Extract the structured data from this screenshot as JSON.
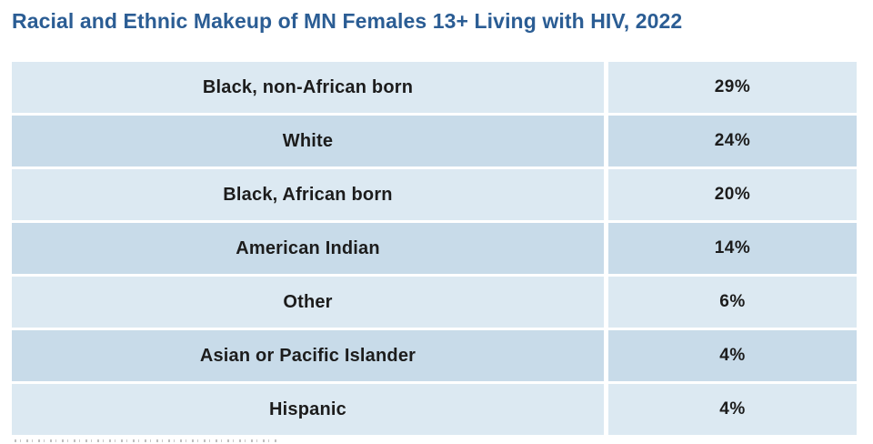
{
  "page": {
    "title": "Racial and Ethnic Makeup of MN Females 13+ Living with HIV, 2022"
  },
  "colors": {
    "title_text": "#2b5d94",
    "row_light": "#dce9f2",
    "row_dark": "#c8dbe9",
    "cell_text": "#1c1c1c",
    "background": "#ffffff"
  },
  "table": {
    "rows": [
      {
        "label": "Black, non-African born",
        "value": "29%"
      },
      {
        "label": "White",
        "value": "24%"
      },
      {
        "label": "Black, African born",
        "value": "20%"
      },
      {
        "label": "American Indian",
        "value": "14%"
      },
      {
        "label": "Other",
        "value": "6%"
      },
      {
        "label": "Asian or Pacific Islander",
        "value": "4%"
      },
      {
        "label": "Hispanic",
        "value": "4%"
      }
    ]
  },
  "chart_data": {
    "type": "table",
    "title": "Racial and Ethnic Makeup of MN Females 13+ Living with HIV, 2022",
    "categories": [
      "Black, non-African born",
      "White",
      "Black, African born",
      "American Indian",
      "Other",
      "Asian or Pacific Islander",
      "Hispanic"
    ],
    "values": [
      29,
      24,
      20,
      14,
      6,
      4,
      4
    ],
    "unit": "%",
    "legend_position": "none",
    "grid": false
  }
}
